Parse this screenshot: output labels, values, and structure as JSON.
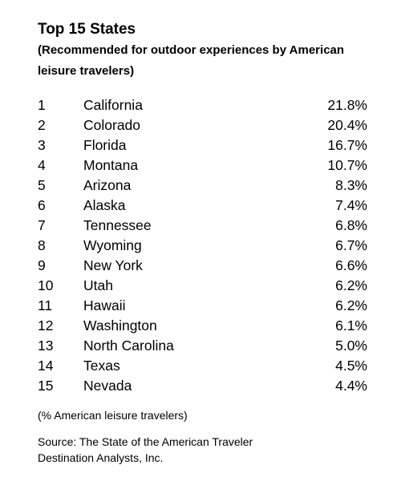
{
  "header": {
    "title": "Top 15 States",
    "subtitle": "(Recommended for outdoor experiences by American leisure travelers)"
  },
  "table": {
    "rows": [
      [
        1,
        "California",
        "21.8%"
      ],
      [
        2,
        "Colorado",
        "20.4%"
      ],
      [
        3,
        "Florida",
        "16.7%"
      ],
      [
        4,
        "Montana",
        "10.7%"
      ],
      [
        5,
        "Arizona",
        "8.3%"
      ],
      [
        6,
        "Alaska",
        "7.4%"
      ],
      [
        7,
        "Tennessee",
        "6.8%"
      ],
      [
        8,
        "Wyoming",
        "6.7%"
      ],
      [
        9,
        "New York",
        "6.6%"
      ],
      [
        10,
        "Utah",
        "6.2%"
      ],
      [
        11,
        "Hawaii",
        "6.2%"
      ],
      [
        12,
        "Washington",
        "6.1%"
      ],
      [
        13,
        "North Carolina",
        "5.0%"
      ],
      [
        14,
        "Texas",
        "4.5%"
      ],
      [
        15,
        "Nevada",
        "4.4%"
      ]
    ]
  },
  "note": "(% American leisure travelers)",
  "source": [
    "Source: The State of the American Traveler",
    "Destination Analysts, Inc."
  ]
}
